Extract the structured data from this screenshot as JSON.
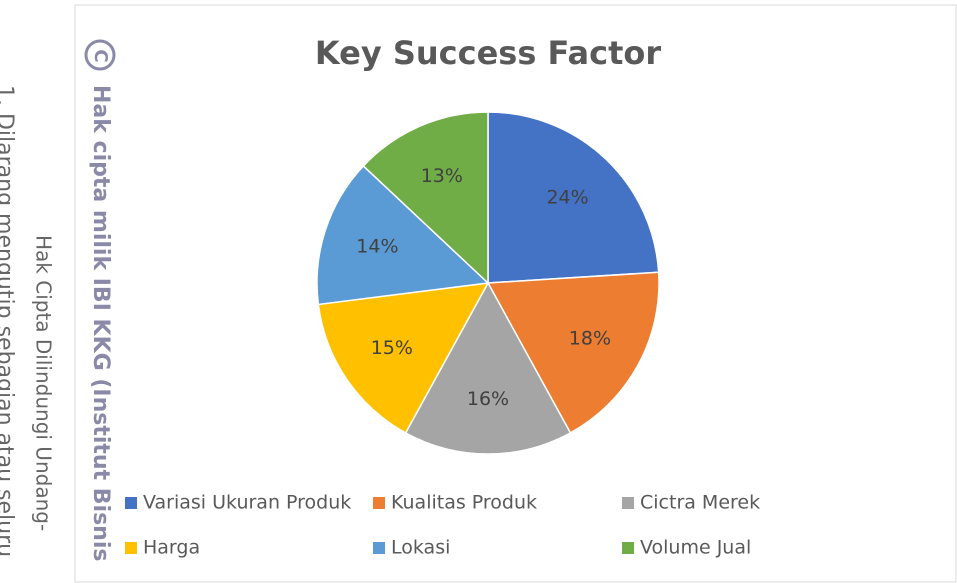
{
  "chart_data": {
    "type": "pie",
    "title": "Key Success Factor",
    "categories": [
      "Variasi Ukuran Produk",
      "Kualitas Produk",
      "Cictra Merek",
      "Harga",
      "Lokasi",
      "Volume Jual"
    ],
    "values": [
      24,
      18,
      16,
      15,
      14,
      13
    ],
    "value_labels": [
      "24%",
      "18%",
      "16%",
      "15%",
      "14%",
      "13%"
    ],
    "colors": [
      "#4472c4",
      "#ed7d31",
      "#a5a5a5",
      "#ffc000",
      "#5b9bd5",
      "#70ad47"
    ],
    "legend": "bottom"
  },
  "watermark": {
    "symbol": "C",
    "line1": "Hak cipta milik IBI KKG (Institut Bisnis",
    "line2": "Hak Cipta Dilindungi Undang-",
    "line3": "1. Dilarang mengutip sebagian atau seluru"
  }
}
